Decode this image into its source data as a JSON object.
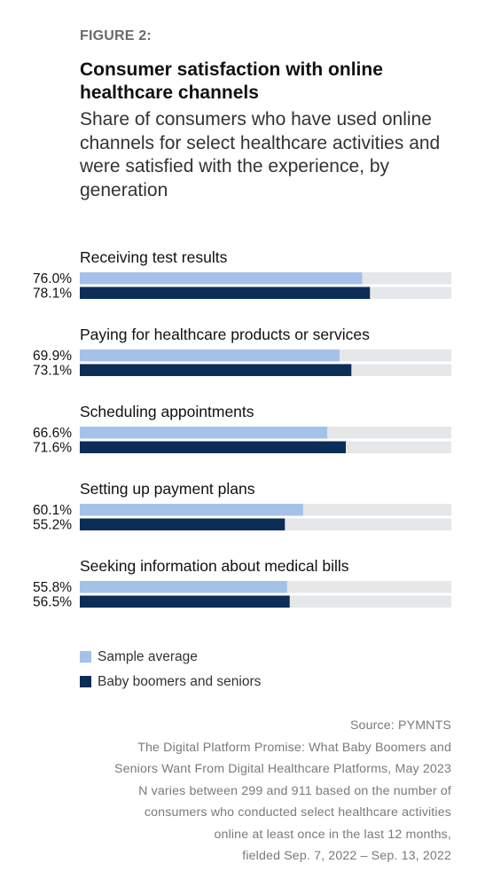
{
  "header": {
    "figure_label": "FIGURE 2:",
    "title": "Consumer satisfaction with online healthcare channels",
    "subtitle": "Share of consumers who have used online channels for select healthcare activities and were satisfied with the experience, by generation"
  },
  "chart_data": {
    "type": "bar",
    "orientation": "horizontal",
    "categories": [
      "Receiving test results",
      "Paying for healthcare products or services",
      "Scheduling appointments",
      "Setting up payment plans",
      "Seeking information about medical bills"
    ],
    "series": [
      {
        "name": "Sample average",
        "color": "#a4c1e8",
        "values": [
          76.0,
          69.9,
          66.6,
          60.1,
          55.8
        ],
        "labels": [
          "76.0%",
          "69.9%",
          "66.6%",
          "60.1%",
          "55.8%"
        ]
      },
      {
        "name": "Baby boomers and seniors",
        "color": "#0c2d57",
        "values": [
          78.1,
          73.1,
          71.6,
          55.2,
          56.5
        ],
        "labels": [
          "78.1%",
          "73.1%",
          "71.6%",
          "55.2%",
          "56.5%"
        ]
      }
    ],
    "xlim": [
      0,
      100
    ],
    "track_color": "#e6e7e9",
    "grid": false,
    "legend_position": "bottom-left"
  },
  "footnote": {
    "lines": [
      "Source: PYMNTS",
      "The Digital Platform Promise: What Baby Boomers and",
      "Seniors Want From Digital Healthcare Platforms, May 2023",
      "N varies between 299 and 911 based on the number of",
      "consumers who conducted select healthcare activities",
      "online at least once in the last 12 months,",
      "fielded Sep. 7, 2022 – Sep. 13, 2022"
    ]
  }
}
